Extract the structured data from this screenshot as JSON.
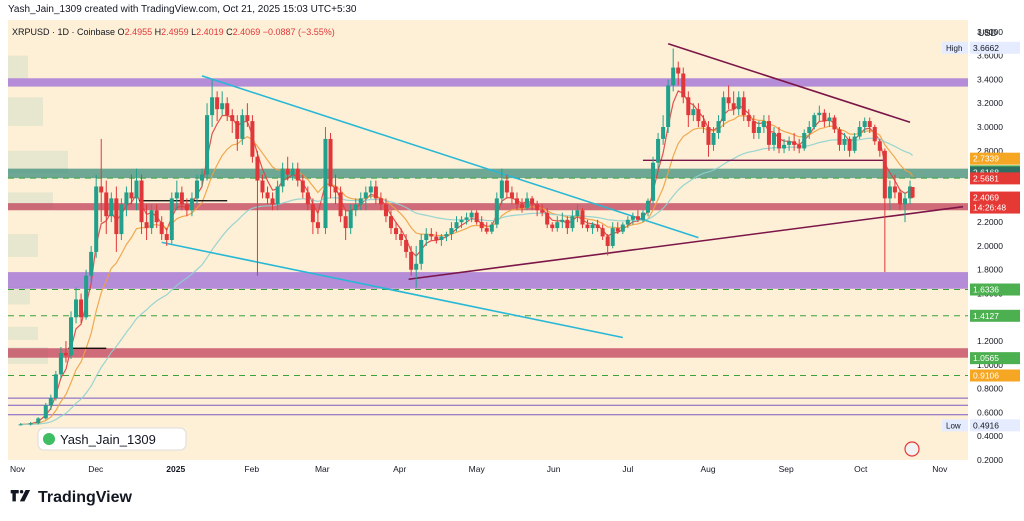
{
  "header": {
    "credit": "Yash_Jain_1309 created with TradingView.com, Oct 21, 2025 15:03 UTC+5:30"
  },
  "legend": {
    "symbol": "XRPUSD · 1D · Coinbase",
    "o_label": "O",
    "o_value": "2.4955",
    "h_label": "H",
    "h_value": "2.4959",
    "l_label": "L",
    "l_value": "2.4019",
    "c_label": "C",
    "c_value": "2.4069",
    "change": "−0.0887 (−3.55%)"
  },
  "watermark": "Yash_Jain_1309",
  "currency": "USD",
  "footer": {
    "brand": "TradingView"
  },
  "colors": {
    "background": "#fdf0d6",
    "purple_zone": "#9b6bd8",
    "teal_zone": "#3f8f7f",
    "red_zone": "#c0405a",
    "cyan_line": "#28b8d6",
    "maroon_line": "#7c1548",
    "green_dash": "#3aa23a",
    "up": "#22a08c",
    "down": "#e0373a",
    "ema_short": "#e04040",
    "ema_mid": "#f0a040",
    "ema_long": "#8fd0d0"
  },
  "chart_data": {
    "type": "candlestick",
    "symbol": "XRPUSD",
    "timeframe": "1D",
    "exchange": "Coinbase",
    "ylim": [
      0.2,
      3.9
    ],
    "y_ticks": [
      "3.8000",
      "3.6000",
      "3.4000",
      "3.2000",
      "3.0000",
      "2.8000",
      "2.6000",
      "2.4000",
      "2.2000",
      "2.0000",
      "1.8000",
      "1.6000",
      "1.4000",
      "1.2000",
      "1.0000",
      "0.8000",
      "0.6000",
      "0.4000",
      "0.2000"
    ],
    "x_ticks": [
      "Nov",
      "Dec",
      "2025",
      "Feb",
      "Mar",
      "Apr",
      "May",
      "Jun",
      "Jul",
      "Aug",
      "Sep",
      "Oct",
      "Nov"
    ],
    "price_labels": [
      {
        "value": "3.6662",
        "tag": "High",
        "color": "#e6ecff",
        "text_color": "#131722"
      },
      {
        "value": "2.7339",
        "color": "#f5a623",
        "text_color": "#ffffff"
      },
      {
        "value": "2.6272",
        "color": "#4caf50",
        "text_color": "#ffffff"
      },
      {
        "value": "2.6168",
        "color": "#2f6f62",
        "text_color": "#ffffff"
      },
      {
        "value": "2.5681",
        "color": "#e53935",
        "text_color": "#ffffff"
      },
      {
        "value": "2.4069",
        "color": "#e53935",
        "text_color": "#ffffff",
        "sub": "14:26:48"
      },
      {
        "value": "1.6336",
        "color": "#4caf50",
        "text_color": "#ffffff"
      },
      {
        "value": "1.4127",
        "color": "#4caf50",
        "text_color": "#ffffff"
      },
      {
        "value": "1.0565",
        "color": "#4caf50",
        "text_color": "#ffffff"
      },
      {
        "value": "0.9106",
        "color": "#f5a623",
        "text_color": "#ffffff"
      },
      {
        "value": "0.4916",
        "tag": "Low",
        "color": "#e6ecff",
        "text_color": "#131722"
      }
    ],
    "zones": [
      {
        "name": "purple-resistance",
        "y_top": 3.41,
        "y_bottom": 3.34,
        "color": "purple_zone"
      },
      {
        "name": "teal-zone",
        "y_top": 2.65,
        "y_bottom": 2.57,
        "color": "teal_zone"
      },
      {
        "name": "red-zone",
        "y_top": 2.36,
        "y_bottom": 2.3,
        "color": "red_zone"
      },
      {
        "name": "purple-support",
        "y_top": 1.78,
        "y_bottom": 1.64,
        "color": "purple_zone"
      },
      {
        "name": "red-lower-zone",
        "y_top": 1.14,
        "y_bottom": 1.06,
        "color": "red_zone"
      }
    ],
    "dashed_levels": [
      2.57,
      1.6336,
      1.4127,
      0.9106
    ],
    "thin_levels": [
      0.72,
      0.66,
      0.58
    ],
    "candles": [
      [
        "2024-11-01",
        0.5,
        0.51,
        0.49,
        0.5
      ],
      [
        "2024-11-05",
        0.5,
        0.52,
        0.49,
        0.51
      ],
      [
        "2024-11-08",
        0.51,
        0.56,
        0.5,
        0.55
      ],
      [
        "2024-11-11",
        0.55,
        0.68,
        0.54,
        0.66
      ],
      [
        "2024-11-13",
        0.66,
        0.75,
        0.62,
        0.72
      ],
      [
        "2024-11-15",
        0.72,
        0.95,
        0.7,
        0.92
      ],
      [
        "2024-11-17",
        0.92,
        1.15,
        0.88,
        1.1
      ],
      [
        "2024-11-19",
        1.1,
        1.2,
        1.02,
        1.08
      ],
      [
        "2024-11-21",
        1.08,
        1.45,
        1.05,
        1.4
      ],
      [
        "2024-11-23",
        1.4,
        1.65,
        1.35,
        1.55
      ],
      [
        "2024-11-25",
        1.55,
        1.6,
        1.35,
        1.4
      ],
      [
        "2024-11-27",
        1.4,
        1.8,
        1.38,
        1.75
      ],
      [
        "2024-11-29",
        1.75,
        2.0,
        1.7,
        1.95
      ],
      [
        "2024-12-01",
        1.95,
        2.6,
        1.9,
        2.5
      ],
      [
        "2024-12-03",
        2.5,
        2.9,
        2.2,
        2.45
      ],
      [
        "2024-12-05",
        2.45,
        2.55,
        2.1,
        2.25
      ],
      [
        "2024-12-07",
        2.25,
        2.45,
        2.2,
        2.4
      ],
      [
        "2024-12-09",
        2.4,
        2.5,
        1.95,
        2.1
      ],
      [
        "2024-12-11",
        2.1,
        2.4,
        2.05,
        2.35
      ],
      [
        "2024-12-13",
        2.35,
        2.5,
        2.25,
        2.45
      ],
      [
        "2024-12-15",
        2.45,
        2.6,
        2.35,
        2.4
      ],
      [
        "2024-12-17",
        2.4,
        2.65,
        2.3,
        2.55
      ],
      [
        "2024-12-19",
        2.55,
        2.6,
        2.1,
        2.2
      ],
      [
        "2024-12-21",
        2.2,
        2.35,
        2.05,
        2.15
      ],
      [
        "2024-12-23",
        2.15,
        2.35,
        2.1,
        2.3
      ],
      [
        "2024-12-25",
        2.3,
        2.35,
        2.15,
        2.2
      ],
      [
        "2024-12-27",
        2.2,
        2.25,
        2.05,
        2.1
      ],
      [
        "2024-12-29",
        2.1,
        2.15,
        2.0,
        2.05
      ],
      [
        "2024-12-31",
        2.05,
        2.45,
        2.02,
        2.4
      ],
      [
        "2025-01-02",
        2.4,
        2.55,
        2.3,
        2.45
      ],
      [
        "2025-01-04",
        2.45,
        2.5,
        2.3,
        2.35
      ],
      [
        "2025-01-06",
        2.35,
        2.4,
        2.25,
        2.3
      ],
      [
        "2025-01-08",
        2.3,
        2.45,
        2.25,
        2.4
      ],
      [
        "2025-01-10",
        2.4,
        2.6,
        2.35,
        2.55
      ],
      [
        "2025-01-12",
        2.55,
        2.65,
        2.5,
        2.6
      ],
      [
        "2025-01-14",
        2.6,
        3.2,
        2.55,
        3.1
      ],
      [
        "2025-01-16",
        3.1,
        3.4,
        3.0,
        3.25
      ],
      [
        "2025-01-18",
        3.25,
        3.3,
        3.05,
        3.15
      ],
      [
        "2025-01-20",
        3.15,
        3.3,
        3.1,
        3.2
      ],
      [
        "2025-01-22",
        3.2,
        3.25,
        3.05,
        3.1
      ],
      [
        "2025-01-24",
        3.1,
        3.15,
        2.95,
        3.05
      ],
      [
        "2025-01-26",
        3.05,
        3.1,
        2.8,
        2.9
      ],
      [
        "2025-01-28",
        2.9,
        3.15,
        2.85,
        3.1
      ],
      [
        "2025-01-30",
        3.1,
        3.2,
        3.0,
        3.05
      ],
      [
        "2025-02-01",
        3.05,
        3.1,
        2.7,
        2.75
      ],
      [
        "2025-02-03",
        2.75,
        2.8,
        1.75,
        2.55
      ],
      [
        "2025-02-05",
        2.55,
        2.6,
        2.4,
        2.45
      ],
      [
        "2025-02-07",
        2.45,
        2.5,
        2.35,
        2.4
      ],
      [
        "2025-02-09",
        2.4,
        2.45,
        2.3,
        2.35
      ],
      [
        "2025-02-11",
        2.35,
        2.55,
        2.3,
        2.5
      ],
      [
        "2025-02-13",
        2.5,
        2.7,
        2.45,
        2.65
      ],
      [
        "2025-02-15",
        2.65,
        2.75,
        2.55,
        2.6
      ],
      [
        "2025-02-17",
        2.6,
        2.7,
        2.55,
        2.65
      ],
      [
        "2025-02-19",
        2.65,
        2.7,
        2.5,
        2.55
      ],
      [
        "2025-02-21",
        2.55,
        2.6,
        2.4,
        2.45
      ],
      [
        "2025-02-23",
        2.45,
        2.5,
        2.3,
        2.35
      ],
      [
        "2025-02-25",
        2.35,
        2.4,
        2.1,
        2.2
      ],
      [
        "2025-02-27",
        2.2,
        2.3,
        2.1,
        2.15
      ],
      [
        "2025-03-02",
        2.15,
        3.0,
        2.1,
        2.9
      ],
      [
        "2025-03-04",
        2.9,
        2.95,
        2.4,
        2.5
      ],
      [
        "2025-03-06",
        2.5,
        2.6,
        2.35,
        2.45
      ],
      [
        "2025-03-08",
        2.45,
        2.5,
        2.2,
        2.25
      ],
      [
        "2025-03-10",
        2.25,
        2.3,
        2.05,
        2.15
      ],
      [
        "2025-03-12",
        2.15,
        2.35,
        2.1,
        2.3
      ],
      [
        "2025-03-14",
        2.3,
        2.4,
        2.25,
        2.35
      ],
      [
        "2025-03-16",
        2.35,
        2.45,
        2.3,
        2.4
      ],
      [
        "2025-03-18",
        2.4,
        2.5,
        2.3,
        2.45
      ],
      [
        "2025-03-20",
        2.45,
        2.55,
        2.4,
        2.5
      ],
      [
        "2025-03-22",
        2.5,
        2.55,
        2.35,
        2.4
      ],
      [
        "2025-03-24",
        2.4,
        2.45,
        2.3,
        2.35
      ],
      [
        "2025-03-26",
        2.35,
        2.4,
        2.2,
        2.25
      ],
      [
        "2025-03-28",
        2.25,
        2.3,
        2.1,
        2.15
      ],
      [
        "2025-03-30",
        2.15,
        2.2,
        2.05,
        2.1
      ],
      [
        "2025-04-01",
        2.1,
        2.15,
        2.0,
        2.05
      ],
      [
        "2025-04-03",
        2.05,
        2.1,
        1.9,
        1.95
      ],
      [
        "2025-04-05",
        1.95,
        2.0,
        1.75,
        1.8
      ],
      [
        "2025-04-07",
        1.8,
        2.0,
        1.65,
        1.85
      ],
      [
        "2025-04-09",
        1.85,
        2.1,
        1.8,
        2.05
      ],
      [
        "2025-04-11",
        2.05,
        2.15,
        2.0,
        2.1
      ],
      [
        "2025-04-13",
        2.1,
        2.15,
        2.05,
        2.08
      ],
      [
        "2025-04-15",
        2.08,
        2.12,
        2.02,
        2.05
      ],
      [
        "2025-04-17",
        2.05,
        2.1,
        2.0,
        2.08
      ],
      [
        "2025-04-19",
        2.08,
        2.12,
        2.04,
        2.1
      ],
      [
        "2025-04-21",
        2.1,
        2.2,
        2.05,
        2.15
      ],
      [
        "2025-04-23",
        2.15,
        2.25,
        2.12,
        2.2
      ],
      [
        "2025-04-25",
        2.2,
        2.25,
        2.15,
        2.22
      ],
      [
        "2025-04-27",
        2.22,
        2.28,
        2.18,
        2.24
      ],
      [
        "2025-04-29",
        2.24,
        2.3,
        2.2,
        2.28
      ],
      [
        "2025-05-01",
        2.28,
        2.3,
        2.18,
        2.2
      ],
      [
        "2025-05-03",
        2.2,
        2.25,
        2.12,
        2.15
      ],
      [
        "2025-05-05",
        2.15,
        2.2,
        2.1,
        2.12
      ],
      [
        "2025-05-07",
        2.12,
        2.2,
        2.1,
        2.18
      ],
      [
        "2025-05-09",
        2.18,
        2.45,
        2.15,
        2.4
      ],
      [
        "2025-05-11",
        2.4,
        2.65,
        2.35,
        2.55
      ],
      [
        "2025-05-13",
        2.55,
        2.6,
        2.4,
        2.45
      ],
      [
        "2025-05-15",
        2.45,
        2.5,
        2.35,
        2.4
      ],
      [
        "2025-05-17",
        2.4,
        2.45,
        2.3,
        2.35
      ],
      [
        "2025-05-19",
        2.35,
        2.4,
        2.28,
        2.32
      ],
      [
        "2025-05-21",
        2.32,
        2.45,
        2.3,
        2.4
      ],
      [
        "2025-05-23",
        2.4,
        2.42,
        2.3,
        2.35
      ],
      [
        "2025-05-25",
        2.35,
        2.38,
        2.25,
        2.3
      ],
      [
        "2025-05-27",
        2.3,
        2.35,
        2.25,
        2.28
      ],
      [
        "2025-05-29",
        2.28,
        2.32,
        2.15,
        2.18
      ],
      [
        "2025-05-31",
        2.18,
        2.2,
        2.12,
        2.15
      ],
      [
        "2025-06-02",
        2.15,
        2.25,
        2.12,
        2.2
      ],
      [
        "2025-06-04",
        2.2,
        2.28,
        2.15,
        2.22
      ],
      [
        "2025-06-06",
        2.22,
        2.25,
        2.1,
        2.15
      ],
      [
        "2025-06-08",
        2.15,
        2.3,
        2.12,
        2.25
      ],
      [
        "2025-06-10",
        2.25,
        2.35,
        2.2,
        2.3
      ],
      [
        "2025-06-12",
        2.3,
        2.32,
        2.15,
        2.18
      ],
      [
        "2025-06-14",
        2.18,
        2.22,
        2.12,
        2.15
      ],
      [
        "2025-06-16",
        2.15,
        2.2,
        2.1,
        2.18
      ],
      [
        "2025-06-18",
        2.18,
        2.22,
        2.12,
        2.15
      ],
      [
        "2025-06-20",
        2.15,
        2.18,
        2.05,
        2.08
      ],
      [
        "2025-06-22",
        2.08,
        2.1,
        1.92,
        2.0
      ],
      [
        "2025-06-24",
        2.0,
        2.2,
        1.98,
        2.15
      ],
      [
        "2025-06-26",
        2.15,
        2.2,
        2.1,
        2.12
      ],
      [
        "2025-06-28",
        2.12,
        2.2,
        2.1,
        2.18
      ],
      [
        "2025-06-30",
        2.18,
        2.25,
        2.15,
        2.22
      ],
      [
        "2025-07-02",
        2.22,
        2.28,
        2.18,
        2.25
      ],
      [
        "2025-07-04",
        2.25,
        2.3,
        2.2,
        2.22
      ],
      [
        "2025-07-06",
        2.22,
        2.3,
        2.2,
        2.28
      ],
      [
        "2025-07-08",
        2.28,
        2.4,
        2.25,
        2.38
      ],
      [
        "2025-07-10",
        2.38,
        2.75,
        2.35,
        2.7
      ],
      [
        "2025-07-12",
        2.7,
        2.95,
        2.65,
        2.9
      ],
      [
        "2025-07-14",
        2.9,
        3.1,
        2.85,
        3.0
      ],
      [
        "2025-07-16",
        3.0,
        3.4,
        2.95,
        3.35
      ],
      [
        "2025-07-18",
        3.35,
        3.66,
        3.3,
        3.5
      ],
      [
        "2025-07-20",
        3.5,
        3.55,
        3.35,
        3.45
      ],
      [
        "2025-07-22",
        3.45,
        3.5,
        3.2,
        3.25
      ],
      [
        "2025-07-24",
        3.25,
        3.3,
        3.0,
        3.1
      ],
      [
        "2025-07-26",
        3.1,
        3.2,
        3.05,
        3.15
      ],
      [
        "2025-07-28",
        3.15,
        3.2,
        3.0,
        3.05
      ],
      [
        "2025-07-30",
        3.05,
        3.1,
        2.95,
        3.0
      ],
      [
        "2025-08-01",
        3.0,
        3.05,
        2.75,
        2.85
      ],
      [
        "2025-08-03",
        2.85,
        3.0,
        2.8,
        2.95
      ],
      [
        "2025-08-05",
        2.95,
        3.1,
        2.9,
        3.05
      ],
      [
        "2025-08-07",
        3.05,
        3.3,
        3.0,
        3.25
      ],
      [
        "2025-08-09",
        3.25,
        3.35,
        3.15,
        3.2
      ],
      [
        "2025-08-11",
        3.2,
        3.3,
        3.1,
        3.15
      ],
      [
        "2025-08-13",
        3.15,
        3.3,
        3.1,
        3.25
      ],
      [
        "2025-08-15",
        3.25,
        3.3,
        3.05,
        3.1
      ],
      [
        "2025-08-17",
        3.1,
        3.15,
        3.0,
        3.05
      ],
      [
        "2025-08-19",
        3.05,
        3.1,
        2.9,
        2.95
      ],
      [
        "2025-08-21",
        2.95,
        3.05,
        2.9,
        3.0
      ],
      [
        "2025-08-23",
        3.0,
        3.1,
        2.95,
        3.05
      ],
      [
        "2025-08-25",
        3.05,
        3.1,
        2.8,
        2.85
      ],
      [
        "2025-08-27",
        2.85,
        3.0,
        2.8,
        2.95
      ],
      [
        "2025-08-29",
        2.95,
        3.0,
        2.78,
        2.82
      ],
      [
        "2025-08-31",
        2.82,
        2.9,
        2.78,
        2.85
      ],
      [
        "2025-09-02",
        2.85,
        2.92,
        2.8,
        2.88
      ],
      [
        "2025-09-04",
        2.88,
        2.95,
        2.8,
        2.85
      ],
      [
        "2025-09-06",
        2.85,
        2.9,
        2.78,
        2.82
      ],
      [
        "2025-09-08",
        2.82,
        2.98,
        2.8,
        2.95
      ],
      [
        "2025-09-10",
        2.95,
        3.05,
        2.9,
        3.0
      ],
      [
        "2025-09-12",
        3.0,
        3.12,
        2.98,
        3.1
      ],
      [
        "2025-09-14",
        3.1,
        3.18,
        3.05,
        3.12
      ],
      [
        "2025-09-16",
        3.12,
        3.15,
        3.0,
        3.05
      ],
      [
        "2025-09-18",
        3.05,
        3.12,
        3.0,
        3.08
      ],
      [
        "2025-09-20",
        3.08,
        3.1,
        2.95,
        2.98
      ],
      [
        "2025-09-22",
        2.98,
        3.0,
        2.8,
        2.85
      ],
      [
        "2025-09-24",
        2.85,
        2.95,
        2.8,
        2.9
      ],
      [
        "2025-09-26",
        2.9,
        2.92,
        2.75,
        2.8
      ],
      [
        "2025-09-28",
        2.8,
        2.95,
        2.78,
        2.92
      ],
      [
        "2025-09-30",
        2.92,
        3.05,
        2.9,
        3.0
      ],
      [
        "2025-10-02",
        3.0,
        3.08,
        2.95,
        3.05
      ],
      [
        "2025-10-04",
        3.05,
        3.08,
        2.95,
        3.0
      ],
      [
        "2025-10-06",
        3.0,
        3.02,
        2.85,
        2.88
      ],
      [
        "2025-10-08",
        2.88,
        2.9,
        2.75,
        2.8
      ],
      [
        "2025-10-10",
        2.8,
        2.82,
        1.78,
        2.4
      ],
      [
        "2025-10-12",
        2.4,
        2.55,
        2.3,
        2.5
      ],
      [
        "2025-10-14",
        2.5,
        2.6,
        2.4,
        2.45
      ],
      [
        "2025-10-16",
        2.45,
        2.48,
        2.3,
        2.35
      ],
      [
        "2025-10-18",
        2.35,
        2.45,
        2.2,
        2.4
      ],
      [
        "2025-10-20",
        2.4,
        2.55,
        2.35,
        2.5
      ],
      [
        "2025-10-21",
        2.4955,
        2.4959,
        2.4019,
        2.4069
      ]
    ]
  }
}
